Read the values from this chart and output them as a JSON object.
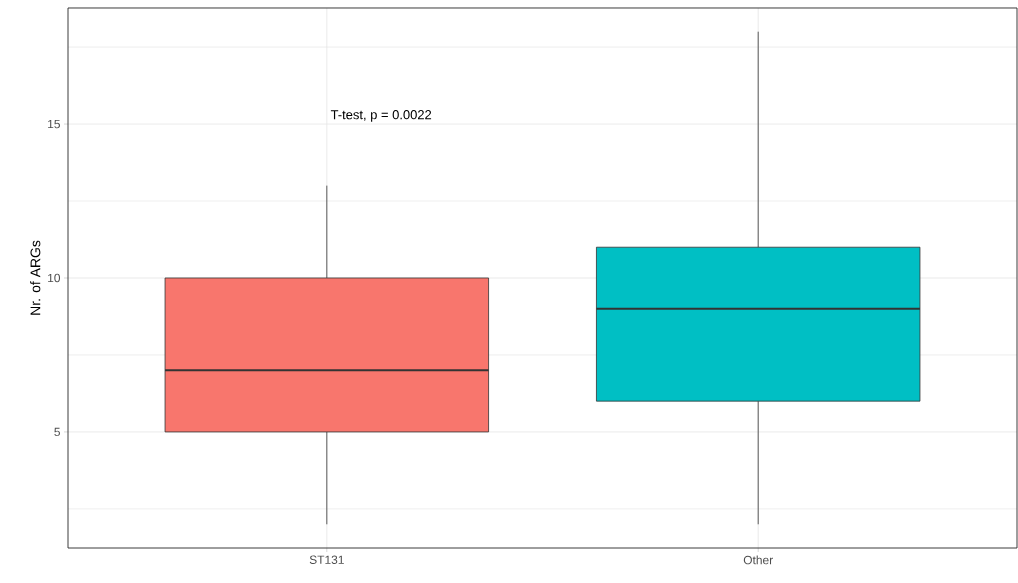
{
  "chart_data": {
    "type": "box",
    "ylabel": "Nr. of ARGs",
    "categories": [
      "ST131",
      "Other"
    ],
    "colors": [
      "#f8766d",
      "#00bfc4"
    ],
    "boxes": [
      {
        "low": 2,
        "q1": 5,
        "median": 7,
        "q3": 10,
        "high": 13
      },
      {
        "low": 2,
        "q1": 6,
        "median": 9,
        "q3": 11,
        "high": 18
      }
    ],
    "ylim": [
      1.23,
      18.77
    ],
    "yticks": [
      {
        "value": 2.5,
        "label": null
      },
      5,
      {
        "value": 7.5,
        "label": null
      },
      10,
      {
        "value": 12.5,
        "label": null
      },
      15,
      {
        "value": 17.5,
        "label": null
      }
    ],
    "grid": true,
    "annotations": [
      "T-test, p = 0.0022"
    ]
  }
}
